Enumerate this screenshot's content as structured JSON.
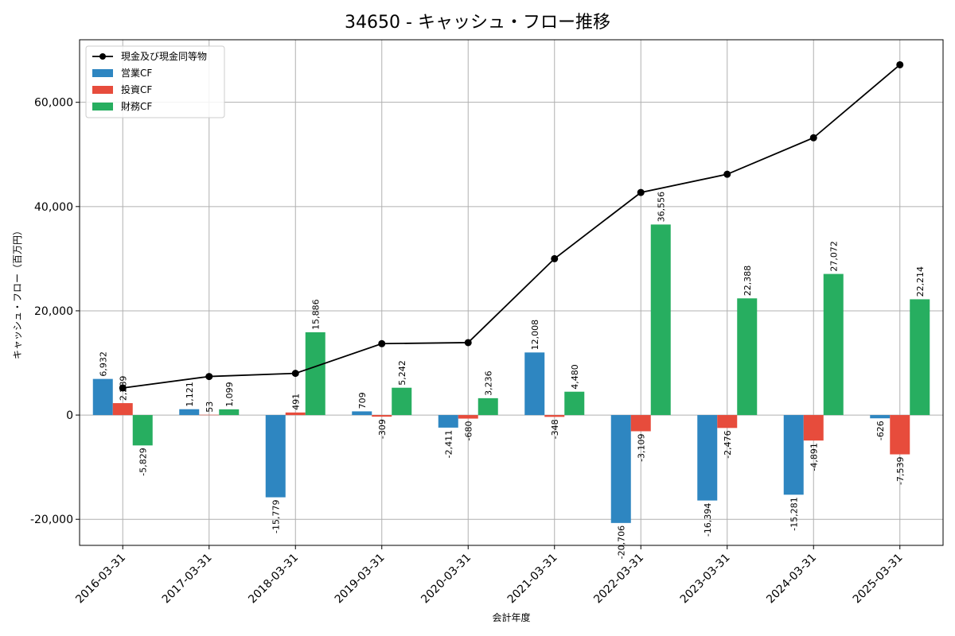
{
  "chart_data": {
    "type": "bar",
    "title": "34650 - キャッシュ・フロー推移",
    "xlabel": "会計年度",
    "ylabel": "キャッシュ・フロー（百万円）",
    "ylim": [
      -25000,
      72000
    ],
    "yticks": [
      -20000,
      0,
      20000,
      40000,
      60000
    ],
    "ytick_labels": [
      "-20,000",
      "0",
      "20,000",
      "40,000",
      "60,000"
    ],
    "grid": true,
    "legend_position": "top-left",
    "categories": [
      "2016-03-31",
      "2017-03-31",
      "2018-03-31",
      "2019-03-31",
      "2020-03-31",
      "2021-03-31",
      "2022-03-31",
      "2023-03-31",
      "2024-03-31",
      "2025-03-31"
    ],
    "series": [
      {
        "name": "営業CF",
        "type": "bar",
        "color": "#2e86c1",
        "values": [
          6932,
          1121,
          -15779,
          709,
          -2411,
          12008,
          -20706,
          -16394,
          -15281,
          -626
        ],
        "labels": [
          "6,932",
          "1,121",
          "-15,779",
          "709",
          "-2,411",
          "12,008",
          "-20,706",
          "-16,394",
          "-15,281",
          "-626"
        ]
      },
      {
        "name": "投資CF",
        "type": "bar",
        "color": "#e74c3c",
        "values": [
          2289,
          53,
          491,
          -309,
          -680,
          -348,
          -3109,
          -2476,
          -4891,
          -7539
        ],
        "labels": [
          "2,289",
          "53",
          "491",
          "-309",
          "-680",
          "-348",
          "-3,109",
          "-2,476",
          "-4,891",
          "-7,539"
        ]
      },
      {
        "name": "財務CF",
        "type": "bar",
        "color": "#27ae60",
        "values": [
          -5829,
          1099,
          15886,
          5242,
          3236,
          4480,
          36556,
          22388,
          27072,
          22214
        ],
        "labels": [
          "-5,829",
          "1,099",
          "15,886",
          "5,242",
          "3,236",
          "4,480",
          "36,556",
          "22,388",
          "27,072",
          "22,214"
        ]
      },
      {
        "name": "現金及び現金同等物",
        "type": "line",
        "color": "#000000",
        "values": [
          5200,
          7400,
          8000,
          13700,
          13900,
          30000,
          42700,
          46200,
          53200,
          67200
        ]
      }
    ]
  }
}
